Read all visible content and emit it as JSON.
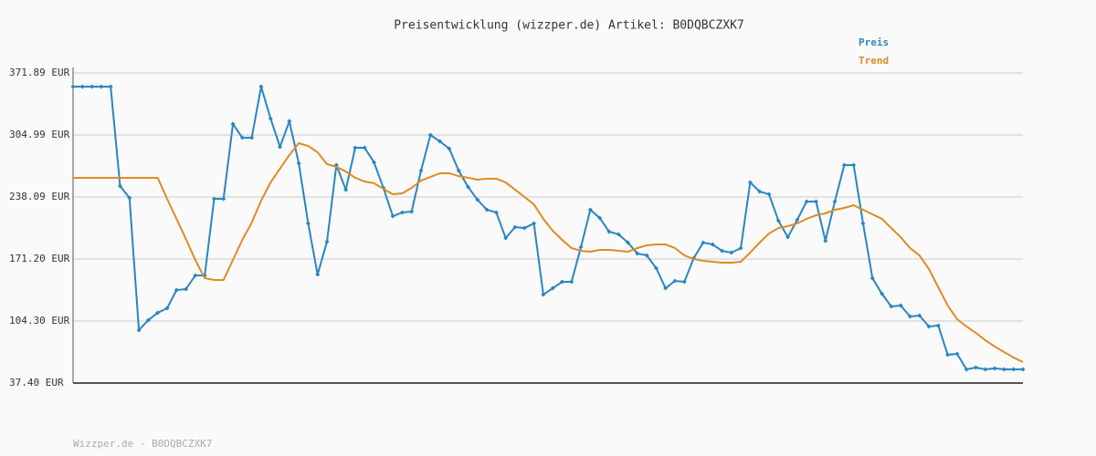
{
  "chart_data": {
    "type": "line",
    "title": "Preisentwicklung (wizzper.de) Artikel: B0DQBCZXK7",
    "footer": "Wizzper.de - B0DQBCZXK7",
    "ylim": [
      37.4,
      371.89
    ],
    "yticks": [
      {
        "value": 37.4,
        "label": "37.40 EUR"
      },
      {
        "value": 104.3,
        "label": "104.30 EUR"
      },
      {
        "value": 171.2,
        "label": "171.20 EUR"
      },
      {
        "value": 238.09,
        "label": "238.09 EUR"
      },
      {
        "value": 304.99,
        "label": "304.99 EUR"
      },
      {
        "value": 371.89,
        "label": "371.89 EUR"
      }
    ],
    "grid": true,
    "legend": "top-right",
    "series": [
      {
        "name": "Preis",
        "color": "#2a86c0",
        "markers": true,
        "values": [
          357.1,
          357.1,
          357.1,
          357.1,
          357.1,
          249.9,
          237.1,
          94.5,
          105.3,
          113.2,
          118.1,
          137.7,
          138.7,
          153.5,
          153.5,
          236.1,
          236.1,
          316.8,
          302.0,
          302.0,
          357.1,
          322.7,
          292.2,
          319.7,
          274.5,
          209.6,
          154.5,
          189.9,
          272.5,
          246.0,
          291.2,
          291.2,
          275.5,
          247.9,
          217.4,
          221.4,
          222.4,
          266.6,
          305.0,
          298.1,
          290.2,
          266.6,
          248.9,
          235.1,
          224.3,
          221.4,
          193.8,
          205.6,
          204.6,
          209.6,
          132.8,
          139.7,
          146.6,
          146.6,
          184.0,
          224.3,
          215.5,
          200.7,
          197.8,
          188.9,
          177.1,
          175.1,
          161.4,
          139.7,
          147.6,
          146.6,
          172.2,
          188.9,
          186.9,
          180.0,
          178.1,
          183.0,
          253.8,
          244.0,
          241.0,
          212.5,
          194.8,
          213.5,
          233.2,
          233.2,
          190.9,
          233.2,
          272.5,
          272.5,
          209.6,
          150.5,
          133.8,
          120.0,
          121.0,
          109.2,
          110.2,
          98.4,
          99.4,
          67.9,
          68.9,
          52.2,
          54.1,
          52.2,
          53.2,
          52.2,
          52.2,
          52.2
        ]
      },
      {
        "name": "Trend",
        "color": "#e08a22",
        "markers": false,
        "values": [
          258.8,
          258.8,
          258.8,
          258.8,
          258.8,
          258.8,
          258.8,
          258.8,
          258.8,
          258.8,
          236.1,
          214.5,
          192.8,
          170.2,
          150.5,
          148.6,
          148.6,
          170.2,
          191.9,
          210.5,
          234.2,
          253.8,
          268.6,
          283.4,
          296.1,
          293.2,
          286.3,
          273.5,
          270.6,
          265.6,
          258.8,
          254.8,
          252.9,
          246.9,
          241.0,
          242.0,
          247.9,
          255.8,
          259.7,
          263.7,
          263.7,
          260.7,
          258.8,
          256.8,
          257.8,
          257.8,
          253.8,
          246.0,
          238.1,
          230.2,
          214.5,
          201.7,
          191.9,
          183.0,
          180.0,
          179.1,
          181.0,
          181.0,
          180.0,
          179.1,
          183.0,
          186.0,
          186.9,
          186.9,
          183.0,
          175.1,
          171.2,
          169.2,
          168.2,
          167.3,
          167.3,
          168.2,
          178.1,
          188.9,
          198.7,
          204.6,
          206.6,
          209.6,
          214.5,
          218.4,
          220.4,
          224.3,
          226.3,
          229.2,
          224.3,
          219.4,
          214.5,
          204.6,
          194.8,
          183.0,
          175.1,
          160.4,
          140.7,
          121.0,
          106.3,
          98.4,
          91.5,
          83.6,
          76.8,
          70.8,
          65.0,
          60.0
        ]
      }
    ]
  }
}
